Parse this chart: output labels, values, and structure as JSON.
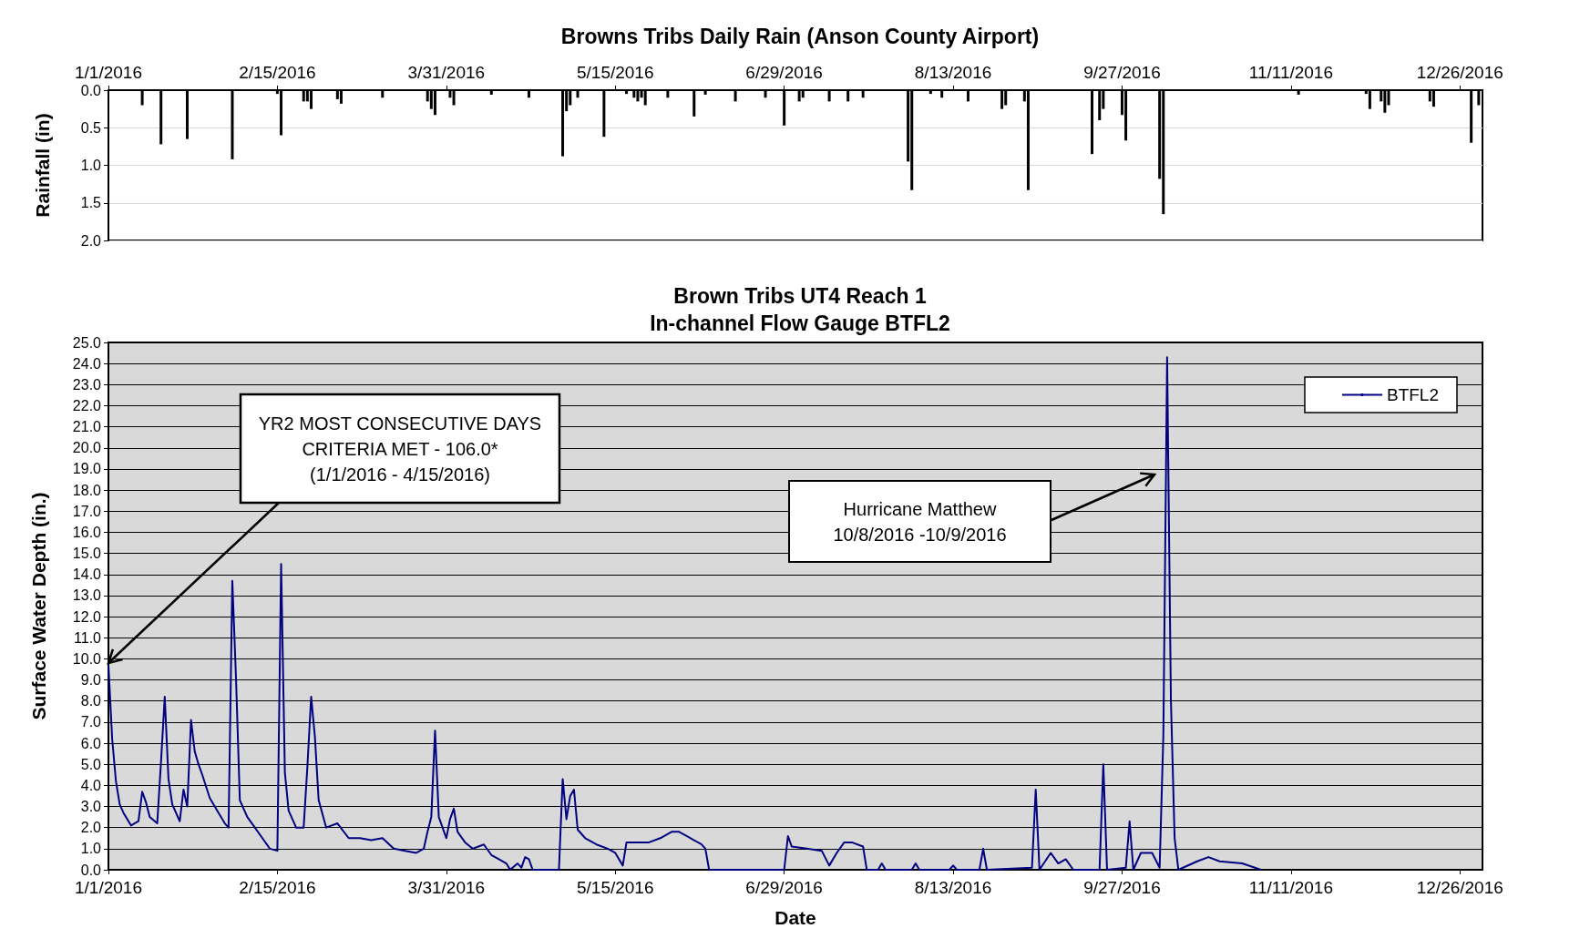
{
  "chart_data": [
    {
      "type": "bar",
      "title": "Browns Tribs Daily Rain (Anson County Airport)",
      "ylabel": "Rainfall (in)",
      "color": "#000000",
      "x": [
        "2016-01-10",
        "2016-01-15",
        "2016-01-22",
        "2016-02-03",
        "2016-02-15",
        "2016-02-16",
        "2016-02-22",
        "2016-02-23",
        "2016-02-24",
        "2016-03-02",
        "2016-03-03",
        "2016-03-14",
        "2016-03-26",
        "2016-03-27",
        "2016-03-28",
        "2016-04-01",
        "2016-04-02",
        "2016-04-12",
        "2016-04-22",
        "2016-05-01",
        "2016-05-02",
        "2016-05-03",
        "2016-05-05",
        "2016-05-12",
        "2016-05-18",
        "2016-05-20",
        "2016-05-21",
        "2016-05-22",
        "2016-05-23",
        "2016-05-29",
        "2016-06-05",
        "2016-06-08",
        "2016-06-16",
        "2016-06-24",
        "2016-06-29",
        "2016-07-03",
        "2016-07-04",
        "2016-07-11",
        "2016-07-16",
        "2016-07-20",
        "2016-08-01",
        "2016-08-02",
        "2016-08-07",
        "2016-08-10",
        "2016-08-17",
        "2016-08-26",
        "2016-08-27",
        "2016-09-01",
        "2016-09-02",
        "2016-09-19",
        "2016-09-21",
        "2016-09-22",
        "2016-09-27",
        "2016-09-28",
        "2016-10-07",
        "2016-10-08",
        "2016-11-13",
        "2016-12-01",
        "2016-12-02",
        "2016-12-05",
        "2016-12-06",
        "2016-12-07",
        "2016-12-18",
        "2016-12-19",
        "2016-12-29",
        "2016-12-31"
      ],
      "values": [
        0.2,
        0.72,
        0.65,
        0.92,
        0.05,
        0.6,
        0.15,
        0.15,
        0.25,
        0.12,
        0.18,
        0.1,
        0.15,
        0.25,
        0.33,
        0.1,
        0.2,
        0.06,
        0.1,
        0.88,
        0.28,
        0.2,
        0.1,
        0.62,
        0.05,
        0.1,
        0.15,
        0.1,
        0.2,
        0.1,
        0.35,
        0.06,
        0.15,
        0.1,
        0.47,
        0.15,
        0.1,
        0.15,
        0.15,
        0.1,
        0.95,
        1.33,
        0.05,
        0.1,
        0.15,
        0.25,
        0.2,
        0.15,
        1.33,
        0.85,
        0.4,
        0.25,
        0.33,
        0.67,
        1.18,
        1.65,
        0.06,
        0.05,
        0.25,
        0.15,
        0.3,
        0.2,
        0.15,
        0.22,
        0.7,
        0.2
      ],
      "xlim": [
        "2016-01-01",
        "2017-01-01"
      ],
      "xticks": [
        {
          "value": "2016-01-01",
          "label": "1/1/2016"
        },
        {
          "value": "2016-02-15",
          "label": "2/15/2016"
        },
        {
          "value": "2016-03-31",
          "label": "3/31/2016"
        },
        {
          "value": "2016-05-15",
          "label": "5/15/2016"
        },
        {
          "value": "2016-06-29",
          "label": "6/29/2016"
        },
        {
          "value": "2016-08-13",
          "label": "8/13/2016"
        },
        {
          "value": "2016-09-27",
          "label": "9/27/2016"
        },
        {
          "value": "2016-11-11",
          "label": "11/11/2016"
        },
        {
          "value": "2016-12-26",
          "label": "12/26/2016"
        }
      ],
      "ylim": [
        2.0,
        0.0
      ],
      "yticks": [
        {
          "value": 0,
          "label": "0.0"
        },
        {
          "value": 0.5,
          "label": "0.5"
        },
        {
          "value": 1,
          "label": "1.0"
        },
        {
          "value": 1.5,
          "label": "1.5"
        },
        {
          "value": 2,
          "label": "2.0"
        }
      ],
      "grid": "y"
    },
    {
      "type": "line",
      "title": "Brown Tribs UT4 Reach 1\nIn-channel Flow Gauge BTFL2",
      "xlabel": "Date",
      "ylabel": "Surface Water Depth (in.)",
      "legend": "top right",
      "marker": "none",
      "series": [
        {
          "name": "BTFL2",
          "color": "#000080",
          "x": [
            "2016-01-01",
            "2016-01-02",
            "2016-01-03",
            "2016-01-04",
            "2016-01-05",
            "2016-01-07",
            "2016-01-09",
            "2016-01-10",
            "2016-01-11",
            "2016-01-12",
            "2016-01-14",
            "2016-01-15",
            "2016-01-16",
            "2016-01-17",
            "2016-01-18",
            "2016-01-20",
            "2016-01-21",
            "2016-01-22",
            "2016-01-23",
            "2016-01-24",
            "2016-01-25",
            "2016-01-26",
            "2016-01-28",
            "2016-01-30",
            "2016-02-01",
            "2016-02-02",
            "2016-02-03",
            "2016-02-04",
            "2016-02-05",
            "2016-02-07",
            "2016-02-09",
            "2016-02-11",
            "2016-02-13",
            "2016-02-15",
            "2016-02-16",
            "2016-02-17",
            "2016-02-18",
            "2016-02-20",
            "2016-02-22",
            "2016-02-23",
            "2016-02-24",
            "2016-02-25",
            "2016-02-26",
            "2016-02-28",
            "2016-03-02",
            "2016-03-05",
            "2016-03-08",
            "2016-03-11",
            "2016-03-14",
            "2016-03-17",
            "2016-03-20",
            "2016-03-23",
            "2016-03-25",
            "2016-03-26",
            "2016-03-27",
            "2016-03-28",
            "2016-03-29",
            "2016-03-31",
            "2016-04-01",
            "2016-04-02",
            "2016-04-03",
            "2016-04-05",
            "2016-04-07",
            "2016-04-10",
            "2016-04-12",
            "2016-04-14",
            "2016-04-16",
            "2016-04-17",
            "2016-04-19",
            "2016-04-20",
            "2016-04-21",
            "2016-04-22",
            "2016-04-23",
            "2016-04-30",
            "2016-05-01",
            "2016-05-02",
            "2016-05-03",
            "2016-05-04",
            "2016-05-05",
            "2016-05-07",
            "2016-05-10",
            "2016-05-13",
            "2016-05-15",
            "2016-05-17",
            "2016-05-18",
            "2016-05-21",
            "2016-05-24",
            "2016-05-27",
            "2016-05-30",
            "2016-06-01",
            "2016-06-03",
            "2016-06-05",
            "2016-06-07",
            "2016-06-08",
            "2016-06-09",
            "2016-06-29",
            "2016-06-30",
            "2016-07-01",
            "2016-07-05",
            "2016-07-09",
            "2016-07-11",
            "2016-07-13",
            "2016-07-15",
            "2016-07-17",
            "2016-07-20",
            "2016-07-21",
            "2016-07-24",
            "2016-07-25",
            "2016-07-26",
            "2016-08-02",
            "2016-08-03",
            "2016-08-04",
            "2016-08-12",
            "2016-08-13",
            "2016-08-14",
            "2016-08-20",
            "2016-08-21",
            "2016-08-22",
            "2016-09-03",
            "2016-09-04",
            "2016-09-05",
            "2016-09-08",
            "2016-09-10",
            "2016-09-12",
            "2016-09-14",
            "2016-09-21",
            "2016-09-22",
            "2016-09-23",
            "2016-09-28",
            "2016-09-29",
            "2016-09-30",
            "2016-10-02",
            "2016-10-05",
            "2016-10-07",
            "2016-10-08",
            "2016-10-09",
            "2016-10-10",
            "2016-10-11",
            "2016-10-12",
            "2016-10-17",
            "2016-10-20",
            "2016-10-23",
            "2016-10-29",
            "2016-11-03"
          ],
          "values": [
            9.7,
            6.2,
            4.2,
            3.1,
            2.7,
            2.1,
            2.3,
            3.7,
            3.2,
            2.5,
            2.2,
            5.1,
            8.2,
            4.3,
            3.1,
            2.3,
            3.8,
            3.0,
            7.1,
            5.6,
            5.0,
            4.5,
            3.4,
            2.8,
            2.2,
            2.0,
            13.7,
            9.0,
            3.3,
            2.5,
            2.0,
            1.5,
            1.0,
            0.9,
            14.5,
            4.6,
            2.8,
            2.0,
            2.0,
            4.9,
            8.2,
            6.3,
            3.3,
            2.0,
            2.2,
            1.5,
            1.5,
            1.4,
            1.5,
            1.0,
            0.9,
            0.8,
            1.0,
            1.8,
            2.5,
            6.6,
            2.5,
            1.5,
            2.4,
            2.9,
            1.8,
            1.3,
            1.0,
            1.2,
            0.7,
            0.5,
            0.3,
            0.0,
            0.3,
            0.1,
            0.6,
            0.5,
            0.0,
            0.0,
            4.3,
            2.4,
            3.5,
            3.8,
            1.9,
            1.5,
            1.2,
            1.0,
            0.8,
            0.2,
            1.3,
            1.3,
            1.3,
            1.5,
            1.8,
            1.8,
            1.6,
            1.4,
            1.2,
            1.0,
            0.0,
            0.0,
            1.6,
            1.1,
            1.0,
            0.9,
            0.2,
            0.8,
            1.3,
            1.3,
            1.1,
            0.0,
            0.0,
            0.3,
            0.0,
            0.0,
            0.3,
            0.0,
            0.0,
            0.2,
            0.0,
            0.0,
            1.0,
            0.0,
            0.1,
            3.8,
            0.0,
            0.8,
            0.3,
            0.5,
            0.0,
            0.0,
            5.0,
            0.0,
            0.1,
            2.3,
            0.0,
            0.8,
            0.8,
            0.1,
            6.4,
            24.3,
            8.1,
            1.5,
            0.0,
            0.4,
            0.6,
            0.4,
            0.3,
            0.0
          ]
        }
      ],
      "xlim": [
        "2016-01-01",
        "2017-01-01"
      ],
      "xticks": [
        {
          "value": "2016-01-01",
          "label": "1/1/2016"
        },
        {
          "value": "2016-02-15",
          "label": "2/15/2016"
        },
        {
          "value": "2016-03-31",
          "label": "3/31/2016"
        },
        {
          "value": "2016-05-15",
          "label": "5/15/2016"
        },
        {
          "value": "2016-06-29",
          "label": "6/29/2016"
        },
        {
          "value": "2016-08-13",
          "label": "8/13/2016"
        },
        {
          "value": "2016-09-27",
          "label": "9/27/2016"
        },
        {
          "value": "2016-11-11",
          "label": "11/11/2016"
        },
        {
          "value": "2016-12-26",
          "label": "12/26/2016"
        }
      ],
      "ylim": [
        0,
        25
      ],
      "yticks": [
        {
          "value": 0,
          "label": "0.0"
        },
        {
          "value": 1,
          "label": "1.0"
        },
        {
          "value": 2,
          "label": "2.0"
        },
        {
          "value": 3,
          "label": "3.0"
        },
        {
          "value": 4,
          "label": "4.0"
        },
        {
          "value": 5,
          "label": "5.0"
        },
        {
          "value": 6,
          "label": "6.0"
        },
        {
          "value": 7,
          "label": "7.0"
        },
        {
          "value": 8,
          "label": "8.0"
        },
        {
          "value": 9,
          "label": "9.0"
        },
        {
          "value": 10,
          "label": "10.0"
        },
        {
          "value": 11,
          "label": "11.0"
        },
        {
          "value": 12,
          "label": "12.0"
        },
        {
          "value": 13,
          "label": "13.0"
        },
        {
          "value": 14,
          "label": "14.0"
        },
        {
          "value": 15,
          "label": "15.0"
        },
        {
          "value": 16,
          "label": "16.0"
        },
        {
          "value": 17,
          "label": "17.0"
        },
        {
          "value": 18,
          "label": "18.0"
        },
        {
          "value": 19,
          "label": "19.0"
        },
        {
          "value": 20,
          "label": "20.0"
        },
        {
          "value": 21,
          "label": "21.0"
        },
        {
          "value": 22,
          "label": "22.0"
        },
        {
          "value": 23,
          "label": "23.0"
        },
        {
          "value": 24,
          "label": "24.0"
        },
        {
          "value": 25,
          "label": "25.0"
        }
      ],
      "grid": "y",
      "annotations": [
        {
          "text": "YR2 MOST CONSECUTIVE DAYS\nCRITERIA MET - 106.0*\n(1/1/2016 - 4/15/2016)",
          "x": "2016-01-01",
          "y": 9.8
        },
        "Hurricane Matthew\n10/8/2016 -10/9/2016"
      ]
    }
  ]
}
